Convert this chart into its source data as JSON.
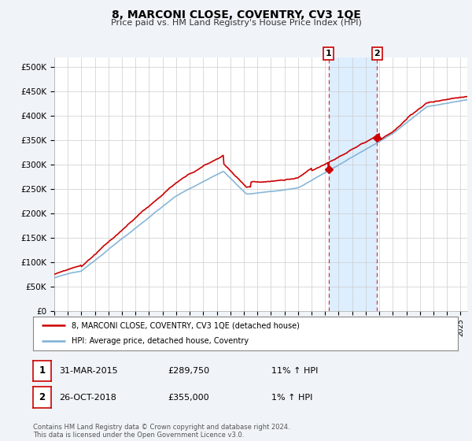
{
  "title": "8, MARCONI CLOSE, COVENTRY, CV3 1QE",
  "subtitle": "Price paid vs. HM Land Registry's House Price Index (HPI)",
  "hpi_color": "#7bafd4",
  "price_color": "#cc0000",
  "background_color": "#f0f4f8",
  "plot_bg_color": "#ffffff",
  "grid_color": "#cccccc",
  "yticks": [
    0,
    50000,
    100000,
    150000,
    200000,
    250000,
    300000,
    350000,
    400000,
    450000,
    500000
  ],
  "ytick_labels": [
    "£0",
    "£50K",
    "£100K",
    "£150K",
    "£200K",
    "£250K",
    "£300K",
    "£350K",
    "£400K",
    "£450K",
    "£500K"
  ],
  "marker1_date": 2015.25,
  "marker1_price": 289750,
  "marker2_date": 2018.83,
  "marker2_price": 355000,
  "shaded_color": "#ddeeff",
  "legend_line1": "8, MARCONI CLOSE, COVENTRY, CV3 1QE (detached house)",
  "legend_line2": "HPI: Average price, detached house, Coventry",
  "table_data": [
    [
      "1",
      "31-MAR-2015",
      "£289,750",
      "11% ↑ HPI"
    ],
    [
      "2",
      "26-OCT-2018",
      "£355,000",
      "1% ↑ HPI"
    ]
  ],
  "footnote": "Contains HM Land Registry data © Crown copyright and database right 2024.\nThis data is licensed under the Open Government Licence v3.0."
}
